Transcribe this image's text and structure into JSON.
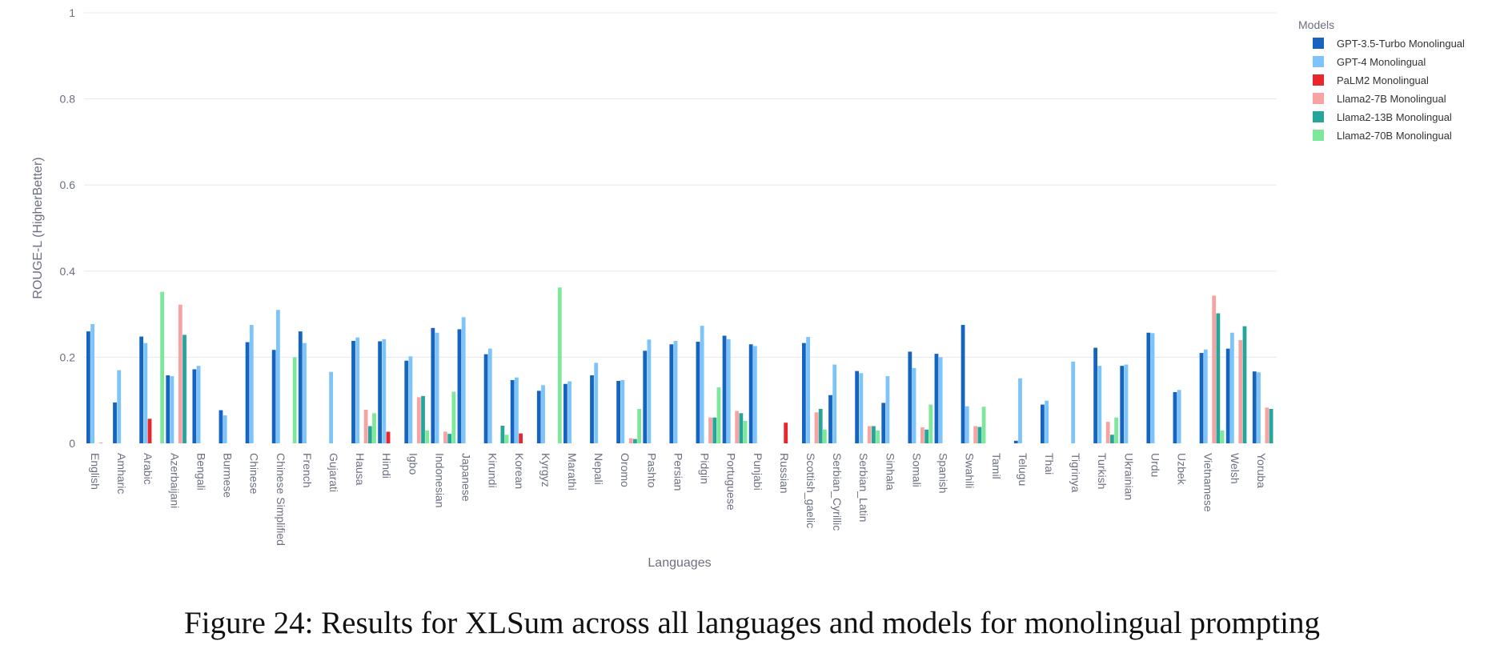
{
  "chart_data": {
    "type": "bar",
    "title": "",
    "xlabel": "Languages",
    "ylabel": "ROUGE-L (HigherBetter)",
    "ylim": [
      0,
      1
    ],
    "yticks": [
      "0",
      "0.2",
      "0.4",
      "0.6",
      "0.8",
      "1"
    ],
    "grid": true,
    "legend_title": "Models",
    "legend_position": "top-right",
    "categories": [
      "English",
      "Amharic",
      "Arabic",
      "Azerbaijani",
      "Bengali",
      "Burmese",
      "Chinese",
      "Chinese Simplified",
      "French",
      "Gujarati",
      "Hausa",
      "Hindi",
      "Igbo",
      "Indonesian",
      "Japanese",
      "Kirundi",
      "Korean",
      "Kyrgyz",
      "Marathi",
      "Nepali",
      "Oromo",
      "Pashto",
      "Persian",
      "Pidgin",
      "Portuguese",
      "Punjabi",
      "Russian",
      "Scottish_gaelic",
      "Serbian_Cyrillic",
      "Serbian_Latin",
      "Sinhala",
      "Somali",
      "Spanish",
      "Swahili",
      "Tamil",
      "Telugu",
      "Thai",
      "Tigrinya",
      "Turkish",
      "Ukrainian",
      "Urdu",
      "Uzbek",
      "Vietnamese",
      "Welsh",
      "Yoruba"
    ],
    "series": [
      {
        "name": "GPT-3.5-Turbo Monolingual",
        "color": "#1565c0",
        "values": [
          0.26,
          0.095,
          0.248,
          0.158,
          0.172,
          0.077,
          0.235,
          0.217,
          0.26,
          0,
          0.238,
          0.237,
          0.192,
          0.268,
          0.265,
          0.207,
          0.147,
          0.122,
          0.138,
          0.158,
          0.145,
          0.215,
          0.23,
          0.236,
          0.25,
          0.23,
          0,
          0.233,
          0.112,
          0.168,
          0.094,
          0.213,
          0.208,
          0.275,
          0,
          0.006,
          0.09,
          0,
          0.222,
          0.18,
          0.257,
          0.119,
          0.21,
          0.22,
          0.167
        ]
      },
      {
        "name": "GPT-4 Monolingual",
        "color": "#7cc4fa",
        "values": [
          0.277,
          0.17,
          0.233,
          0.156,
          0.18,
          0.065,
          0.275,
          0.31,
          0.233,
          0.166,
          0.246,
          0.242,
          0.202,
          0.257,
          0.293,
          0.22,
          0.153,
          0.135,
          0.144,
          0.187,
          0.147,
          0.241,
          0.238,
          0.273,
          0.242,
          0.226,
          0,
          0.247,
          0.183,
          0.163,
          0.156,
          0.175,
          0.2,
          0.086,
          0,
          0.151,
          0.099,
          0.19,
          0.18,
          0.183,
          0.256,
          0.124,
          0.218,
          0.257,
          0.165
        ]
      },
      {
        "name": "PaLM2 Monolingual",
        "color": "#e8262b",
        "values": [
          0,
          0,
          0.057,
          0,
          0,
          0,
          0,
          0,
          0,
          0,
          0,
          0.027,
          0,
          0,
          0,
          0,
          0.023,
          0,
          0,
          0,
          0,
          0,
          0,
          0,
          0,
          0,
          0.048,
          0,
          0,
          0,
          0,
          0,
          0,
          0,
          0,
          0,
          0,
          0,
          0,
          0,
          0,
          0,
          0,
          0,
          0
        ]
      },
      {
        "name": "Llama2-7B Monolingual",
        "color": "#f7a3a3",
        "values": [
          0.002,
          0,
          0,
          0.322,
          0,
          0,
          0,
          0,
          0,
          0,
          0.078,
          0,
          0.107,
          0.027,
          0,
          0,
          0,
          0,
          0,
          0,
          0.012,
          0,
          0,
          0.06,
          0.075,
          0,
          0,
          0.072,
          0,
          0.04,
          0,
          0.037,
          0,
          0.04,
          0,
          0,
          0,
          0,
          0.05,
          0,
          0,
          0,
          0.343,
          0.24,
          0.083
        ]
      },
      {
        "name": "Llama2-13B Monolingual",
        "color": "#26a69a",
        "values": [
          0,
          0,
          0,
          0.252,
          0,
          0,
          0,
          0,
          0,
          0,
          0.04,
          0,
          0.11,
          0.022,
          0,
          0.041,
          0,
          0,
          0,
          0,
          0.01,
          0,
          0,
          0.06,
          0.07,
          0,
          0,
          0.08,
          0,
          0.04,
          0,
          0.032,
          0,
          0.038,
          0,
          0,
          0,
          0,
          0.02,
          0,
          0,
          0,
          0.302,
          0.272,
          0.08
        ]
      },
      {
        "name": "Llama2-70B Monolingual",
        "color": "#7ee89a",
        "values": [
          0,
          0,
          0.352,
          0,
          0,
          0,
          0,
          0.2,
          0,
          0,
          0.07,
          0,
          0.03,
          0.12,
          0,
          0.02,
          0,
          0.362,
          0,
          0,
          0.08,
          0,
          0,
          0.13,
          0.052,
          0,
          0,
          0.032,
          0,
          0.03,
          0,
          0.09,
          0,
          0.085,
          0,
          0,
          0,
          0,
          0.06,
          0,
          0,
          0,
          0.03,
          0,
          0
        ]
      }
    ]
  },
  "caption": "Figure 24: Results for XLSum across all languages and models for monolingual prompting"
}
